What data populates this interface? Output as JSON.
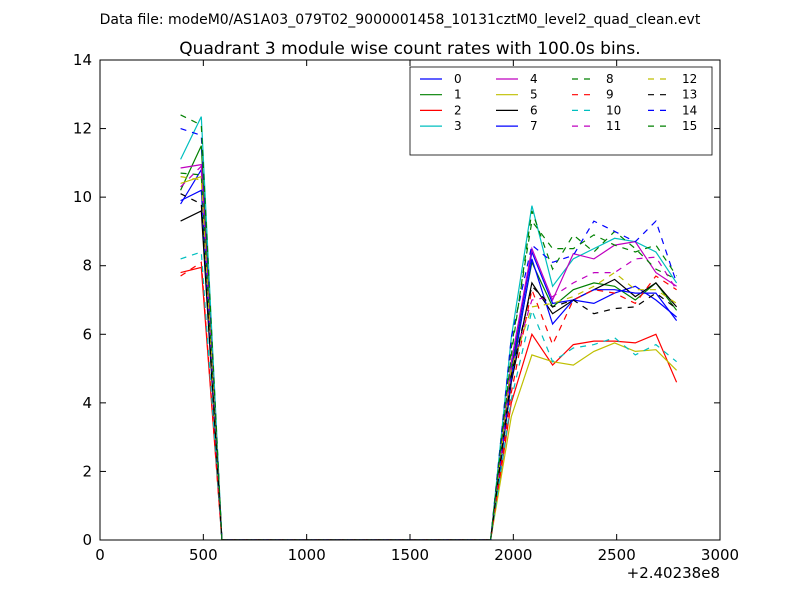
{
  "page": {
    "suptitle": "Data file: modeM0/AS1A03_079T02_9000001458_10131cztM0_level2_quad_clean.evt"
  },
  "chart_data": {
    "type": "line",
    "title": "Quadrant 3 module wise count rates with 100.0s bins.",
    "xlabel": "",
    "ylabel": "",
    "x_offset_label": "+2.40238e8",
    "xlim": [
      0,
      3000
    ],
    "ylim": [
      0,
      14
    ],
    "xticks": [
      0,
      500,
      1000,
      1500,
      2000,
      2500,
      3000
    ],
    "yticks": [
      0,
      2,
      4,
      6,
      8,
      10,
      12,
      14
    ],
    "grid": false,
    "legend": {
      "placement": "top-right",
      "columns": 4
    },
    "x": [
      390,
      490,
      590,
      690,
      790,
      890,
      990,
      1090,
      1190,
      1290,
      1390,
      1490,
      1590,
      1690,
      1790,
      1890,
      1990,
      2090,
      2190,
      2290,
      2390,
      2490,
      2590,
      2690,
      2790
    ],
    "series": [
      {
        "name": "0",
        "color": "#0000ff",
        "dash": "solid",
        "values": [
          9.8,
          10.8,
          0,
          0,
          0,
          0,
          0,
          0,
          0,
          0,
          0,
          0,
          0,
          0,
          0,
          0,
          5.0,
          8.4,
          6.9,
          7.0,
          6.9,
          7.2,
          7.4,
          7.0,
          6.5
        ]
      },
      {
        "name": "1",
        "color": "#008000",
        "dash": "solid",
        "values": [
          10.2,
          11.5,
          0,
          0,
          0,
          0,
          0,
          0,
          0,
          0,
          0,
          0,
          0,
          0,
          0,
          0,
          4.9,
          8.1,
          6.8,
          7.3,
          7.5,
          7.4,
          7.0,
          7.5,
          6.7
        ]
      },
      {
        "name": "2",
        "color": "#ff0000",
        "dash": "solid",
        "values": [
          7.8,
          7.95,
          0,
          0,
          0,
          0,
          0,
          0,
          0,
          0,
          0,
          0,
          0,
          0,
          0,
          0,
          4.0,
          6.0,
          5.1,
          5.7,
          5.8,
          5.8,
          5.75,
          6.0,
          4.6
        ]
      },
      {
        "name": "3",
        "color": "#00bfbf",
        "dash": "solid",
        "values": [
          11.1,
          12.35,
          0,
          0,
          0,
          0,
          0,
          0,
          0,
          0,
          0,
          0,
          0,
          0,
          0,
          0,
          5.9,
          9.75,
          7.4,
          8.2,
          8.5,
          8.8,
          8.7,
          8.4,
          7.5
        ]
      },
      {
        "name": "4",
        "color": "#bf00bf",
        "dash": "solid",
        "values": [
          10.85,
          10.95,
          0,
          0,
          0,
          0,
          0,
          0,
          0,
          0,
          0,
          0,
          0,
          0,
          0,
          0,
          5.2,
          8.5,
          7.0,
          8.35,
          8.2,
          8.6,
          8.7,
          7.8,
          7.4
        ]
      },
      {
        "name": "5",
        "color": "#bfbf00",
        "dash": "solid",
        "values": [
          10.4,
          10.6,
          0,
          0,
          0,
          0,
          0,
          0,
          0,
          0,
          0,
          0,
          0,
          0,
          0,
          0,
          3.6,
          5.4,
          5.2,
          5.1,
          5.5,
          5.75,
          5.5,
          5.55,
          4.95
        ]
      },
      {
        "name": "6",
        "color": "#000000",
        "dash": "solid",
        "values": [
          9.3,
          9.6,
          0,
          0,
          0,
          0,
          0,
          0,
          0,
          0,
          0,
          0,
          0,
          0,
          0,
          0,
          4.6,
          7.5,
          6.6,
          7.0,
          7.3,
          7.6,
          7.1,
          7.5,
          6.8
        ]
      },
      {
        "name": "7",
        "color": "#0000ff",
        "dash": "solid",
        "values": [
          9.9,
          10.2,
          0,
          0,
          0,
          0,
          0,
          0,
          0,
          0,
          0,
          0,
          0,
          0,
          0,
          0,
          4.7,
          8.2,
          6.3,
          7.0,
          7.3,
          7.3,
          7.2,
          7.2,
          6.4
        ]
      },
      {
        "name": "8",
        "color": "#008000",
        "dash": "dashed",
        "values": [
          10.7,
          10.65,
          0,
          0,
          0,
          0,
          0,
          0,
          0,
          0,
          0,
          0,
          0,
          0,
          0,
          0,
          5.4,
          9.6,
          7.9,
          8.9,
          8.4,
          9.0,
          8.5,
          7.9,
          7.6
        ]
      },
      {
        "name": "9",
        "color": "#ff0000",
        "dash": "dashed",
        "values": [
          7.7,
          8.1,
          0,
          0,
          0,
          0,
          0,
          0,
          0,
          0,
          0,
          0,
          0,
          0,
          0,
          0,
          4.3,
          7.3,
          5.7,
          7.0,
          7.3,
          7.2,
          6.9,
          7.7,
          7.3
        ]
      },
      {
        "name": "10",
        "color": "#00bfbf",
        "dash": "dashed",
        "values": [
          8.2,
          8.4,
          0,
          0,
          0,
          0,
          0,
          0,
          0,
          0,
          0,
          0,
          0,
          0,
          0,
          0,
          4.1,
          6.7,
          5.2,
          5.6,
          5.7,
          5.9,
          5.4,
          5.7,
          5.2
        ]
      },
      {
        "name": "11",
        "color": "#bf00bf",
        "dash": "dashed",
        "values": [
          10.3,
          10.9,
          0,
          0,
          0,
          0,
          0,
          0,
          0,
          0,
          0,
          0,
          0,
          0,
          0,
          0,
          5.0,
          7.0,
          7.1,
          7.5,
          7.8,
          7.8,
          8.2,
          8.25,
          7.3
        ]
      },
      {
        "name": "12",
        "color": "#bfbf00",
        "dash": "dashed",
        "values": [
          10.6,
          10.5,
          0,
          0,
          0,
          0,
          0,
          0,
          0,
          0,
          0,
          0,
          0,
          0,
          0,
          0,
          5.0,
          6.8,
          6.9,
          7.1,
          7.4,
          7.8,
          7.3,
          7.3,
          6.9
        ]
      },
      {
        "name": "13",
        "color": "#000000",
        "dash": "dashed",
        "values": [
          10.1,
          9.8,
          0,
          0,
          0,
          0,
          0,
          0,
          0,
          0,
          0,
          0,
          0,
          0,
          0,
          0,
          4.8,
          7.4,
          6.8,
          7.0,
          6.6,
          6.75,
          6.8,
          7.2,
          6.75
        ]
      },
      {
        "name": "14",
        "color": "#0000ff",
        "dash": "dashed",
        "values": [
          12.0,
          11.8,
          0,
          0,
          0,
          0,
          0,
          0,
          0,
          0,
          0,
          0,
          0,
          0,
          0,
          0,
          5.9,
          8.6,
          8.1,
          8.3,
          9.3,
          9.0,
          8.7,
          9.3,
          7.5
        ]
      },
      {
        "name": "15",
        "color": "#008000",
        "dash": "dashed",
        "values": [
          12.4,
          12.1,
          0,
          0,
          0,
          0,
          0,
          0,
          0,
          0,
          0,
          0,
          0,
          0,
          0,
          0,
          5.6,
          9.3,
          8.5,
          8.5,
          8.9,
          8.6,
          8.4,
          8.6,
          7.7
        ]
      }
    ]
  }
}
